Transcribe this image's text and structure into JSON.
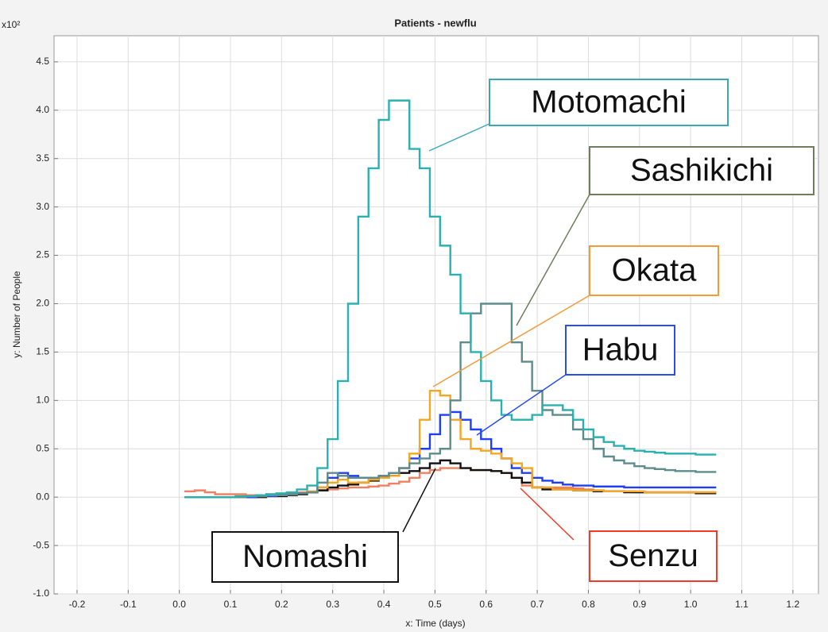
{
  "chart_data": {
    "type": "line",
    "step": true,
    "title": "Patients - newflu",
    "x_label": "x: Time (days)",
    "y_label": "y: Number of People",
    "y_multiplier": "x10²",
    "xlim": [
      -0.245,
      1.25
    ],
    "ylim": [
      -1.0,
      4.77
    ],
    "xticks": [
      -0.2,
      -0.1,
      {
        "value": 0,
        "label": "0.0"
      },
      0.1,
      0.2,
      0.3,
      0.4,
      0.5,
      0.6,
      0.7,
      0.8,
      0.9,
      {
        "value": 1,
        "label": "1.0"
      },
      1.1,
      1.2
    ],
    "yticks": [
      {
        "value": -1,
        "label": "-1.0"
      },
      -0.5,
      {
        "value": 0,
        "label": "0.0"
      },
      0.5,
      {
        "value": 1,
        "label": "1.0"
      },
      1.5,
      {
        "value": 2,
        "label": "2.0"
      },
      2.5,
      {
        "value": 3,
        "label": "3.0"
      },
      3.5,
      {
        "value": 4,
        "label": "4.0"
      },
      4.5
    ],
    "grid": true,
    "x": [
      0.01,
      0.03,
      0.05,
      0.07,
      0.09,
      0.11,
      0.13,
      0.15,
      0.17,
      0.19,
      0.21,
      0.23,
      0.25,
      0.27,
      0.29,
      0.31,
      0.33,
      0.35,
      0.37,
      0.39,
      0.41,
      0.43,
      0.45,
      0.47,
      0.49,
      0.51,
      0.53,
      0.55,
      0.57,
      0.59,
      0.61,
      0.63,
      0.65,
      0.67,
      0.69,
      0.71,
      0.73,
      0.75,
      0.77,
      0.79,
      0.81,
      0.83,
      0.85,
      0.87,
      0.89,
      0.91,
      0.93,
      0.95,
      0.97,
      0.99,
      1.01,
      1.03,
      1.05
    ],
    "series": [
      {
        "name": "Motomachi",
        "color": "#2bb0b0",
        "values": [
          0,
          0,
          0,
          0,
          0,
          0.01,
          0.01,
          0.02,
          0.03,
          0.04,
          0.05,
          0.08,
          0.12,
          0.3,
          0.6,
          1.2,
          2.0,
          2.9,
          3.4,
          3.9,
          4.1,
          4.1,
          3.6,
          3.4,
          2.9,
          2.6,
          2.3,
          1.9,
          1.5,
          1.2,
          1.0,
          0.85,
          0.8,
          0.8,
          0.85,
          0.95,
          0.95,
          0.9,
          0.8,
          0.7,
          0.62,
          0.57,
          0.53,
          0.5,
          0.48,
          0.47,
          0.46,
          0.45,
          0.45,
          0.45,
          0.44,
          0.44,
          0.44
        ]
      },
      {
        "name": "Sashikichi",
        "color": "#5e8c8c",
        "values": [
          0,
          0,
          0,
          0,
          0,
          0,
          0.01,
          0.01,
          0.02,
          0.02,
          0.03,
          0.04,
          0.05,
          0.15,
          0.25,
          0.22,
          0.2,
          0.2,
          0.2,
          0.22,
          0.25,
          0.3,
          0.35,
          0.4,
          0.45,
          0.5,
          1.0,
          1.6,
          1.9,
          2.0,
          2.0,
          2.0,
          1.6,
          1.4,
          1.1,
          0.9,
          0.85,
          0.85,
          0.7,
          0.6,
          0.5,
          0.42,
          0.38,
          0.35,
          0.32,
          0.3,
          0.29,
          0.28,
          0.27,
          0.27,
          0.26,
          0.26,
          0.26
        ]
      },
      {
        "name": "Okata",
        "color": "#f5a623",
        "values": [
          0,
          0,
          0,
          0,
          0,
          0,
          0.01,
          0.01,
          0.02,
          0.02,
          0.03,
          0.04,
          0.06,
          0.1,
          0.15,
          0.18,
          0.15,
          0.15,
          0.18,
          0.2,
          0.22,
          0.3,
          0.45,
          0.8,
          1.1,
          1.05,
          0.8,
          0.6,
          0.5,
          0.48,
          0.45,
          0.4,
          0.35,
          0.3,
          0.1,
          0.1,
          0.08,
          0.08,
          0.07,
          0.07,
          0.07,
          0.06,
          0.06,
          0.06,
          0.06,
          0.05,
          0.05,
          0.05,
          0.05,
          0.05,
          0.05,
          0.05,
          0.05
        ]
      },
      {
        "name": "Habu",
        "color": "#1f3ff5",
        "values": [
          0,
          0,
          0,
          0,
          0,
          0,
          0,
          0.01,
          0.01,
          0.02,
          0.03,
          0.04,
          0.05,
          0.1,
          0.2,
          0.25,
          0.22,
          0.2,
          0.2,
          0.22,
          0.25,
          0.3,
          0.4,
          0.5,
          0.65,
          0.85,
          0.88,
          0.8,
          0.7,
          0.6,
          0.5,
          0.4,
          0.3,
          0.25,
          0.2,
          0.17,
          0.15,
          0.13,
          0.12,
          0.12,
          0.11,
          0.11,
          0.11,
          0.1,
          0.1,
          0.1,
          0.1,
          0.1,
          0.1,
          0.1,
          0.1,
          0.1,
          0.1
        ]
      },
      {
        "name": "Nomashi",
        "color": "#111111",
        "values": [
          0,
          0,
          0,
          0,
          0,
          0,
          0,
          0,
          0.01,
          0.01,
          0.02,
          0.03,
          0.05,
          0.07,
          0.1,
          0.12,
          0.13,
          0.15,
          0.17,
          0.2,
          0.22,
          0.25,
          0.27,
          0.3,
          0.35,
          0.38,
          0.35,
          0.3,
          0.28,
          0.28,
          0.27,
          0.25,
          0.2,
          0.15,
          0.1,
          0.08,
          0.08,
          0.08,
          0.07,
          0.07,
          0.06,
          0.06,
          0.06,
          0.05,
          0.05,
          0.05,
          0.05,
          0.05,
          0.05,
          0.05,
          0.04,
          0.04,
          0.04
        ]
      },
      {
        "name": "Senzu",
        "color": "#f08060",
        "values": [
          0.06,
          0.07,
          0.05,
          0.03,
          0.03,
          0.03,
          0.02,
          0.02,
          0.03,
          0.03,
          0.04,
          0.05,
          0.05,
          0.07,
          0.08,
          0.09,
          0.1,
          0.1,
          0.11,
          0.12,
          0.14,
          0.16,
          0.2,
          0.25,
          0.28,
          0.3,
          0.3,
          0.3,
          0.28,
          0.28,
          0.27,
          0.25,
          0.2,
          0.12,
          0.1,
          0.1,
          0.1,
          0.1,
          0.09,
          0.08,
          0.07,
          0.06,
          0.06,
          0.06,
          0.05,
          0.05,
          0.05,
          0.05,
          0.05,
          0.05,
          0.05,
          0.05,
          0.05
        ]
      }
    ],
    "annotations": [
      {
        "text": "Motomachi",
        "color": "#3aa9b5"
      },
      {
        "text": "Sashikichi",
        "color": "#6b7f5a"
      },
      {
        "text": "Okata",
        "color": "#f59a3a"
      },
      {
        "text": "Habu",
        "color": "#2a4df0"
      },
      {
        "text": "Nomashi",
        "color": "#111111"
      },
      {
        "text": "Senzu",
        "color": "#f03a2a"
      }
    ]
  }
}
